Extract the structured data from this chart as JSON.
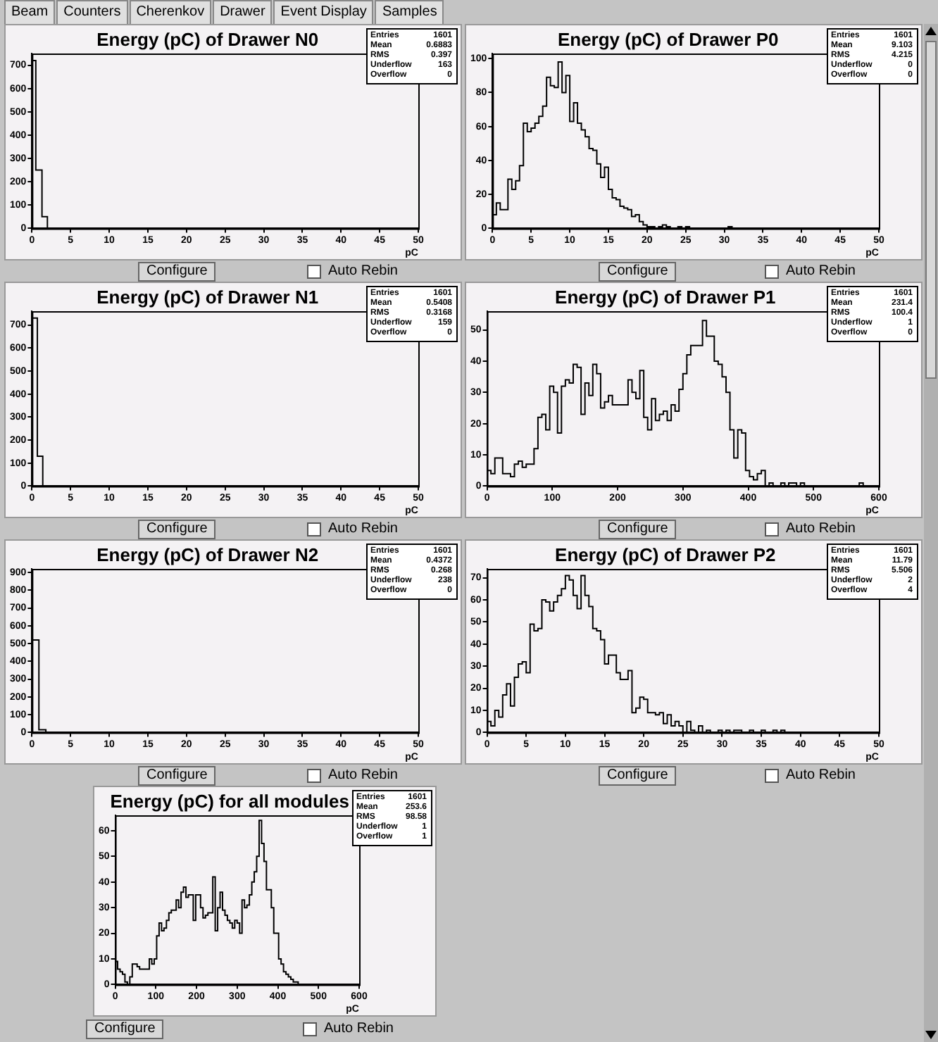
{
  "chart_data": [
    {
      "type": "other",
      "annotations": [
        "Beam",
        "Counters",
        "Cherenkov",
        "Drawer",
        "Event Display",
        "Samples"
      ]
    },
    {
      "type": "histogram",
      "title": "Energy (pC) of Drawer N0",
      "xlabel": "pC",
      "color": "#000000",
      "bins": [
        0,
        0.5,
        1.3,
        2,
        50
      ],
      "values": [
        720,
        250,
        50,
        0
      ],
      "xlim": [
        0,
        50
      ],
      "xticks": [
        0,
        5,
        10,
        15,
        20,
        25,
        30,
        35,
        40,
        45,
        50
      ],
      "ylim": [
        0,
        750
      ],
      "yticks": [
        0,
        100,
        200,
        300,
        400,
        500,
        600,
        700
      ],
      "annotations": [
        "Entries 1601",
        "Mean 0.6883",
        "RMS 0.397",
        "Underflow 163",
        "Overflow 0",
        "Configure",
        "Auto Rebin"
      ]
    },
    {
      "type": "histogram",
      "title": "Energy (pC) of Drawer P0",
      "xlabel": "pC",
      "color": "#000000",
      "bins": [
        0,
        0.5,
        1,
        1.5,
        2,
        2.5,
        3,
        3.5,
        4,
        4.5,
        5,
        5.5,
        6,
        6.5,
        7,
        7.5,
        8,
        8.5,
        9,
        9.5,
        10,
        10.5,
        11,
        11.5,
        12,
        12.5,
        13,
        13.5,
        14,
        14.5,
        15,
        15.5,
        16,
        16.5,
        17,
        17.5,
        18,
        18.5,
        19,
        19.5,
        20,
        20.5,
        21,
        21.5,
        22,
        22.5,
        23,
        23.5,
        24,
        24.5,
        25,
        25.5,
        26,
        26.5,
        27,
        27.5,
        28,
        28.5,
        29,
        29.5,
        30,
        30.5,
        31,
        31.5,
        32,
        32.5,
        33,
        33.5,
        34,
        34.5,
        35,
        35.5,
        36,
        36.5,
        37,
        37.5,
        38,
        38.5,
        39,
        39.5,
        40,
        40.5,
        41,
        41.5,
        42,
        42.5,
        43,
        43.5,
        44,
        44.5,
        45,
        45.5,
        46,
        46.5,
        47,
        47.5,
        48,
        48.5,
        49,
        49.5,
        50
      ],
      "values": [
        8,
        15,
        11,
        11,
        29,
        23,
        28,
        37,
        62,
        57,
        59,
        62,
        66,
        72,
        89,
        84,
        83,
        98,
        80,
        90,
        63,
        74,
        62,
        58,
        54,
        47,
        46,
        38,
        30,
        36,
        23,
        18,
        17,
        13,
        12,
        11,
        7,
        8,
        4,
        2,
        1,
        1,
        0,
        1,
        2,
        1,
        0,
        0,
        1,
        0,
        1,
        0,
        0,
        0,
        0,
        0,
        0,
        0,
        0,
        0,
        0,
        1,
        0,
        0,
        0,
        0,
        0,
        0,
        0,
        0,
        0,
        0,
        0,
        0,
        0,
        0,
        0,
        0,
        0,
        0,
        0,
        0,
        0,
        0,
        0,
        0,
        0,
        0,
        0,
        0,
        0,
        0,
        0,
        0,
        0,
        0,
        0,
        0,
        0,
        0
      ],
      "xlim": [
        0,
        50
      ],
      "xticks": [
        0,
        5,
        10,
        15,
        20,
        25,
        30,
        35,
        40,
        45,
        50
      ],
      "ylim": [
        0,
        103
      ],
      "yticks": [
        0,
        20,
        40,
        60,
        80,
        100
      ],
      "annotations": [
        "Entries 1601",
        "Mean 9.103",
        "RMS 4.215",
        "Underflow 0",
        "Overflow 0",
        "Configure",
        "Auto Rebin"
      ]
    },
    {
      "type": "histogram",
      "title": "Energy (pC) of Drawer N1",
      "xlabel": "pC",
      "color": "#000000",
      "bins": [
        0,
        0.7,
        1.4,
        50
      ],
      "values": [
        730,
        130,
        0
      ],
      "xlim": [
        0,
        50
      ],
      "xticks": [
        0,
        5,
        10,
        15,
        20,
        25,
        30,
        35,
        40,
        45,
        50
      ],
      "ylim": [
        0,
        760
      ],
      "yticks": [
        0,
        100,
        200,
        300,
        400,
        500,
        600,
        700
      ],
      "annotations": [
        "Entries 1601",
        "Mean 0.5408",
        "RMS 0.3168",
        "Underflow 159",
        "Overflow 0",
        "Configure",
        "Auto Rebin"
      ]
    },
    {
      "type": "histogram",
      "title": "Energy (pC) of Drawer P1",
      "xlabel": "pC",
      "color": "#000000",
      "bins": [
        0,
        6,
        12,
        18,
        24,
        30,
        36,
        42,
        48,
        54,
        60,
        66,
        72,
        78,
        84,
        90,
        96,
        102,
        108,
        114,
        120,
        126,
        132,
        138,
        144,
        150,
        156,
        162,
        168,
        174,
        180,
        186,
        192,
        198,
        204,
        210,
        216,
        222,
        228,
        234,
        240,
        246,
        252,
        258,
        264,
        270,
        276,
        282,
        288,
        294,
        300,
        306,
        312,
        318,
        324,
        330,
        336,
        342,
        348,
        354,
        360,
        366,
        372,
        378,
        384,
        390,
        396,
        402,
        408,
        414,
        420,
        426,
        432,
        438,
        444,
        450,
        456,
        462,
        468,
        474,
        480,
        486,
        492,
        498,
        504,
        510,
        516,
        522,
        528,
        534,
        540,
        546,
        552,
        558,
        564,
        570,
        576,
        582,
        588,
        594,
        600
      ],
      "values": [
        5,
        4,
        9,
        9,
        4,
        4,
        3,
        7,
        8,
        6,
        7,
        7,
        12,
        22,
        23,
        18,
        32,
        30,
        17,
        32,
        34,
        33,
        39,
        38,
        23,
        33,
        29,
        39,
        36,
        25,
        27,
        29,
        26,
        26,
        26,
        26,
        34,
        30,
        28,
        37,
        22,
        18,
        28,
        21,
        23,
        24,
        21,
        26,
        24,
        31,
        36,
        42,
        45,
        45,
        45,
        53,
        48,
        48,
        40,
        39,
        35,
        30,
        18,
        9,
        18,
        17,
        5,
        3,
        2,
        4,
        5,
        0,
        1,
        0,
        0,
        1,
        0,
        1,
        1,
        0,
        1,
        0,
        0,
        0,
        0,
        0,
        0,
        0,
        0,
        0,
        0,
        0,
        0,
        0,
        0,
        1,
        0,
        0,
        0,
        0
      ],
      "xlim": [
        0,
        600
      ],
      "xticks": [
        0,
        100,
        200,
        300,
        400,
        500,
        600
      ],
      "ylim": [
        0,
        56
      ],
      "yticks": [
        0,
        10,
        20,
        30,
        40,
        50
      ],
      "annotations": [
        "Entries 1601",
        "Mean 231.4",
        "RMS 100.4",
        "Underflow 1",
        "Overflow 0",
        "Configure",
        "Auto Rebin"
      ]
    },
    {
      "type": "histogram",
      "title": "Energy (pC) of Drawer N2",
      "xlabel": "pC",
      "color": "#000000",
      "bins": [
        0,
        0.9,
        1.8,
        50
      ],
      "values": [
        520,
        15,
        0
      ],
      "xlim": [
        0,
        50
      ],
      "xticks": [
        0,
        5,
        10,
        15,
        20,
        25,
        30,
        35,
        40,
        45,
        50
      ],
      "ylim": [
        0,
        920
      ],
      "yticks": [
        0,
        100,
        200,
        300,
        400,
        500,
        600,
        700,
        800,
        900
      ],
      "annotations": [
        "Entries 1601",
        "Mean 0.4372",
        "RMS 0.268",
        "Underflow 238",
        "Overflow 0",
        "Configure",
        "Auto Rebin"
      ]
    },
    {
      "type": "histogram",
      "title": "Energy (pC) of Drawer P2",
      "xlabel": "pC",
      "color": "#000000",
      "bins": [
        0,
        0.5,
        1,
        1.5,
        2,
        2.5,
        3,
        3.5,
        4,
        4.5,
        5,
        5.5,
        6,
        6.5,
        7,
        7.5,
        8,
        8.5,
        9,
        9.5,
        10,
        10.5,
        11,
        11.5,
        12,
        12.5,
        13,
        13.5,
        14,
        14.5,
        15,
        15.5,
        16,
        16.5,
        17,
        17.5,
        18,
        18.5,
        19,
        19.5,
        20,
        20.5,
        21,
        21.5,
        22,
        22.5,
        23,
        23.5,
        24,
        24.5,
        25,
        25.5,
        26,
        26.5,
        27,
        27.5,
        28,
        28.5,
        29,
        29.5,
        30,
        30.5,
        31,
        31.5,
        32,
        32.5,
        33,
        33.5,
        34,
        34.5,
        35,
        35.5,
        36,
        36.5,
        37,
        37.5,
        38,
        38.5,
        39,
        39.5,
        40,
        40.5,
        41,
        41.5,
        42,
        42.5,
        43,
        43.5,
        44,
        44.5,
        45,
        45.5,
        46,
        46.5,
        47,
        47.5,
        48,
        48.5,
        49,
        49.5,
        50
      ],
      "values": [
        5,
        3,
        10,
        7,
        17,
        22,
        12,
        25,
        31,
        32,
        27,
        49,
        46,
        47,
        60,
        59,
        55,
        59,
        62,
        65,
        71,
        69,
        62,
        56,
        71,
        62,
        57,
        47,
        46,
        42,
        31,
        35,
        35,
        27,
        24,
        24,
        28,
        9,
        11,
        16,
        15,
        9,
        9,
        8,
        9,
        4,
        8,
        3,
        5,
        3,
        0,
        5,
        1,
        0,
        3,
        0,
        1,
        0,
        0,
        1,
        0,
        1,
        0,
        1,
        1,
        0,
        0,
        1,
        0,
        0,
        1,
        0,
        0,
        1,
        0,
        1,
        0,
        0,
        0,
        0,
        0,
        0,
        0,
        0,
        0,
        0,
        0,
        0,
        0,
        0,
        0,
        0,
        0,
        0,
        0,
        0,
        0,
        0,
        0,
        0
      ],
      "xlim": [
        0,
        50
      ],
      "xticks": [
        0,
        5,
        10,
        15,
        20,
        25,
        30,
        35,
        40,
        45,
        50
      ],
      "ylim": [
        0,
        74
      ],
      "yticks": [
        0,
        10,
        20,
        30,
        40,
        50,
        60,
        70
      ],
      "annotations": [
        "Entries 1601",
        "Mean 11.79",
        "RMS 5.506",
        "Underflow 2",
        "Overflow 4",
        "Configure",
        "Auto Rebin"
      ]
    },
    {
      "type": "histogram",
      "title": "Energy (pC) for all modules",
      "xlabel": "pC",
      "color": "#000000",
      "bins": [
        0,
        6,
        12,
        18,
        24,
        30,
        36,
        42,
        48,
        54,
        60,
        66,
        72,
        78,
        84,
        90,
        96,
        102,
        108,
        114,
        120,
        126,
        132,
        138,
        144,
        150,
        156,
        162,
        168,
        174,
        180,
        186,
        192,
        198,
        204,
        210,
        216,
        222,
        228,
        234,
        240,
        246,
        252,
        258,
        264,
        270,
        276,
        282,
        288,
        294,
        300,
        306,
        312,
        318,
        324,
        330,
        336,
        342,
        348,
        354,
        360,
        366,
        372,
        378,
        384,
        390,
        396,
        402,
        408,
        414,
        420,
        426,
        432,
        438,
        444,
        450,
        456,
        462,
        468,
        474,
        480,
        486,
        492,
        498,
        504,
        510,
        516,
        522,
        528,
        534,
        540,
        546,
        552,
        558,
        564,
        570,
        576,
        582,
        588,
        594,
        600
      ],
      "values": [
        9,
        6,
        5,
        4,
        1,
        0,
        3,
        8,
        8,
        7,
        6,
        6,
        6,
        6,
        10,
        8,
        10,
        19,
        24,
        21,
        22,
        25,
        28,
        29,
        29,
        33,
        30,
        36,
        38,
        34,
        35,
        35,
        25,
        35,
        35,
        30,
        26,
        27,
        28,
        28,
        42,
        21,
        30,
        36,
        29,
        27,
        25,
        24,
        22,
        25,
        24,
        20,
        33,
        30,
        31,
        35,
        40,
        44,
        50,
        64,
        55,
        48,
        37,
        37,
        30,
        20,
        20,
        10,
        8,
        5,
        4,
        3,
        2,
        1,
        1,
        0,
        0,
        0,
        0,
        0,
        0,
        0,
        0,
        0,
        0,
        0,
        0,
        0,
        0,
        0,
        0,
        0,
        0,
        0,
        0,
        0,
        0,
        0,
        0,
        0
      ],
      "xlim": [
        0,
        600
      ],
      "xticks": [
        0,
        100,
        200,
        300,
        400,
        500,
        600
      ],
      "ylim": [
        0,
        66
      ],
      "yticks": [
        0,
        10,
        20,
        30,
        40,
        50,
        60
      ],
      "annotations": [
        "Entries 1601",
        "Mean 253.6",
        "RMS 98.58",
        "Underflow 1",
        "Overflow 1",
        "Configure",
        "Auto Rebin"
      ]
    }
  ]
}
